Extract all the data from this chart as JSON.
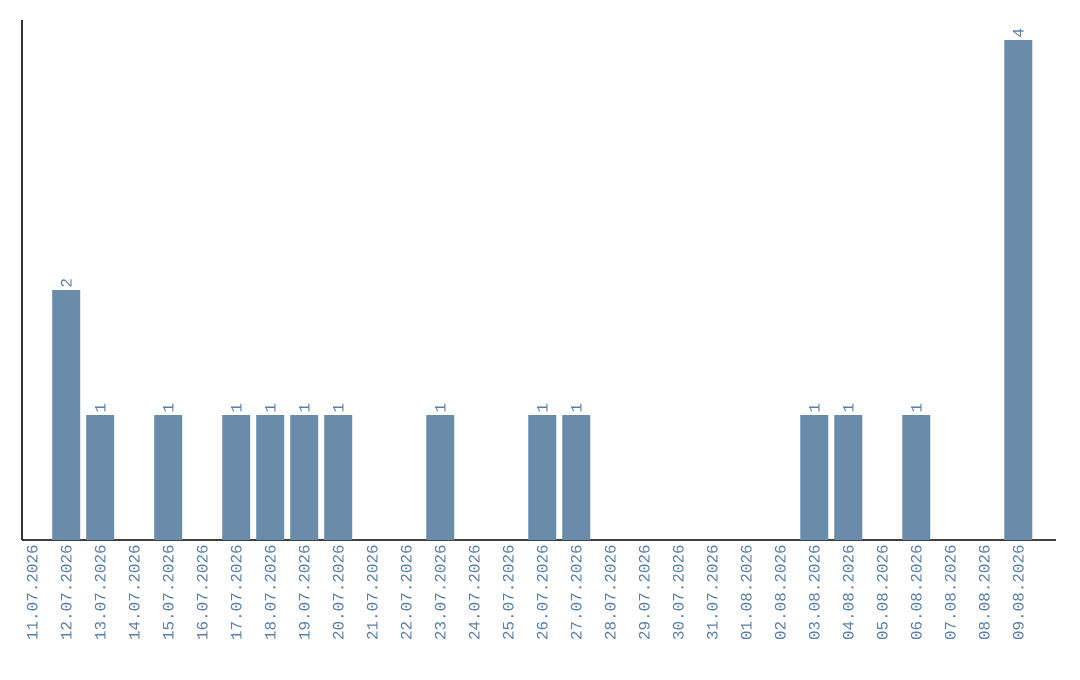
{
  "chart_data": {
    "type": "bar",
    "categories": [
      "11.07.2026",
      "12.07.2026",
      "13.07.2026",
      "14.07.2026",
      "15.07.2026",
      "16.07.2026",
      "17.07.2026",
      "18.07.2026",
      "19.07.2026",
      "20.07.2026",
      "21.07.2026",
      "22.07.2026",
      "23.07.2026",
      "24.07.2026",
      "25.07.2026",
      "26.07.2026",
      "27.07.2026",
      "28.07.2026",
      "29.07.2026",
      "30.07.2026",
      "31.07.2026",
      "01.08.2026",
      "02.08.2026",
      "03.08.2026",
      "04.08.2026",
      "05.08.2026",
      "06.08.2026",
      "07.08.2026",
      "08.08.2026",
      "09.08.2026"
    ],
    "values": [
      0,
      2,
      1,
      0,
      1,
      0,
      1,
      1,
      1,
      1,
      0,
      0,
      1,
      0,
      0,
      1,
      1,
      0,
      0,
      0,
      0,
      0,
      0,
      1,
      1,
      0,
      1,
      0,
      0,
      4
    ],
    "value_labels": [
      null,
      "2",
      "1",
      null,
      "1",
      null,
      "1",
      "1",
      "1",
      "1",
      null,
      null,
      "1",
      null,
      null,
      "1",
      "1",
      null,
      null,
      null,
      null,
      null,
      null,
      "1",
      "1",
      null,
      "1",
      null,
      null,
      "4"
    ],
    "color": "#6a8caa",
    "ylim": [
      0,
      4.16
    ],
    "tick_labels": "x",
    "grid": false
  }
}
